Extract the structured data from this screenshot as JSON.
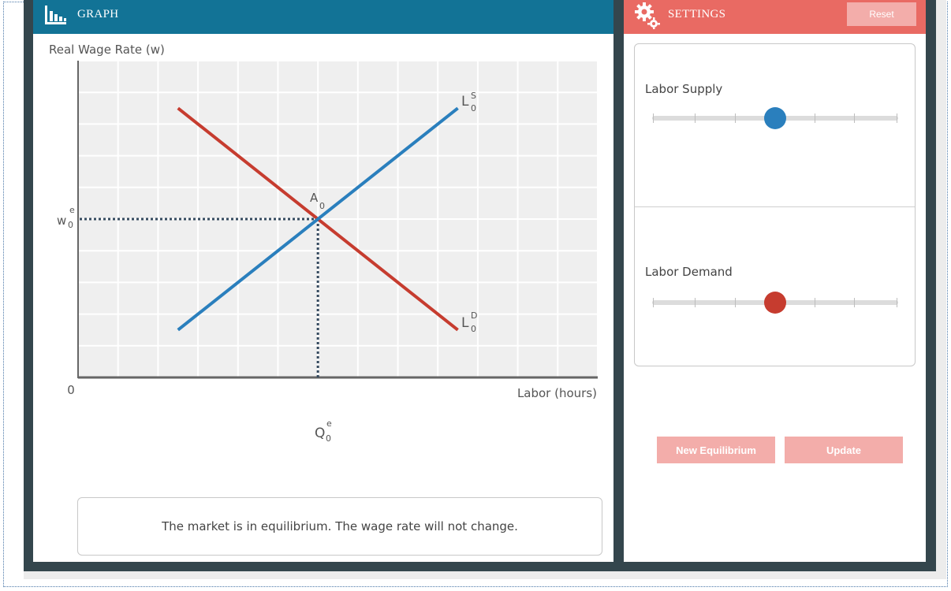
{
  "graph": {
    "title": "GRAPH",
    "y_axis_label": "Real Wage Rate (w)",
    "x_axis_label": "Labor (hours)",
    "origin_label": "0",
    "equilibrium_point_label": "A",
    "equilibrium_point_subscript": "0",
    "wage_label": "w",
    "wage_sup": "e",
    "wage_sub": "0",
    "quantity_label": "Q",
    "quantity_sup": "e",
    "quantity_sub": "0",
    "supply_label": "L",
    "supply_sup": "S",
    "supply_sub": "0",
    "demand_label": "L",
    "demand_sup": "D",
    "demand_sub": "0",
    "supply_color": "#2a7fbd",
    "demand_color": "#c63c2f"
  },
  "chart_data": {
    "type": "line",
    "series": [
      {
        "name": "L0S",
        "points": [
          [
            2.5,
            1.5
          ],
          [
            9.5,
            8.5
          ]
        ]
      },
      {
        "name": "L0D",
        "points": [
          [
            2.5,
            8.5
          ],
          [
            9.5,
            1.5
          ]
        ]
      }
    ],
    "equilibrium": {
      "x": 6,
      "y": 5
    },
    "xlim": [
      0,
      13
    ],
    "ylim": [
      0,
      10
    ],
    "grid": true
  },
  "message": "The market is in equilibrium. The wage rate will not change.",
  "settings": {
    "title": "SETTINGS",
    "reset_label": "Reset",
    "labor_supply_label": "Labor Supply",
    "labor_demand_label": "Labor Demand",
    "labor_supply_value": 0.5,
    "labor_demand_value": 0.5,
    "new_equilibrium_label": "New Equilibrium",
    "update_label": "Update"
  },
  "icons": {
    "graph": "bar-chart-icon",
    "settings": "gears-icon"
  }
}
